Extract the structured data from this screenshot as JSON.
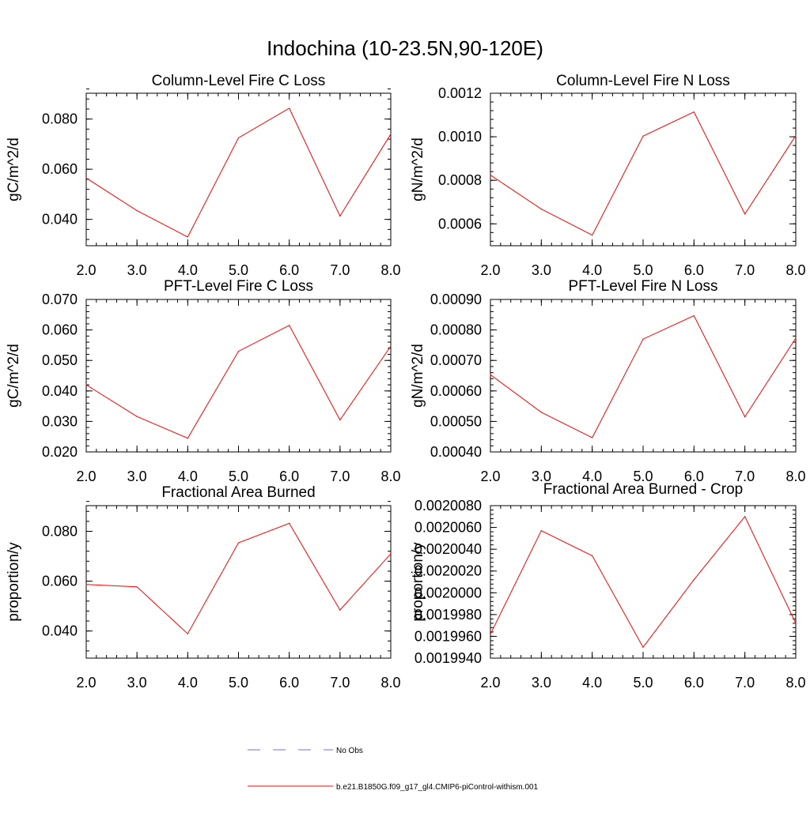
{
  "figure_title": "Indochina (10-23.5N,90-120E)",
  "colors": {
    "model": "#ff0000",
    "obs": "#7070c0",
    "axis": "#000000"
  },
  "legend": [
    {
      "label": "No Obs",
      "style": "dashed",
      "color": "#7070c0"
    },
    {
      "label": "b.e21.B1850G.f09_g17_gl4.CMIP6-piControl-withism.001",
      "style": "solid",
      "color": "#ff0000"
    }
  ],
  "chart_data": [
    {
      "type": "line",
      "title": "Column-Level Fire C Loss",
      "xlabel": "",
      "ylabel": "gC/m^2/d",
      "x": [
        2,
        3,
        4,
        5,
        6,
        7,
        8
      ],
      "xticks": [
        "2.0",
        "3.0",
        "4.0",
        "5.0",
        "6.0",
        "7.0",
        "8.0"
      ],
      "xlim": [
        2,
        8
      ],
      "ylim": [
        0.0295,
        0.0903
      ],
      "yticks": [
        0.04,
        0.06,
        0.08
      ],
      "yticklabels": [
        "0.040",
        "0.060",
        "0.080"
      ],
      "series": [
        {
          "name": "b.e21.B1850G.f09_g17_gl4.CMIP6-piControl-withism.001",
          "values": [
            0.0565,
            0.0435,
            0.033,
            0.0725,
            0.0843,
            0.0413,
            0.074
          ]
        }
      ]
    },
    {
      "type": "line",
      "title": "Column-Level Fire N Loss",
      "xlabel": "",
      "ylabel": "gN/m^2/d",
      "x": [
        2,
        3,
        4,
        5,
        6,
        7,
        8
      ],
      "xticks": [
        "2.0",
        "3.0",
        "4.0",
        "5.0",
        "6.0",
        "7.0",
        "8.0"
      ],
      "xlim": [
        2,
        8
      ],
      "ylim": [
        0.0004995,
        0.0012
      ],
      "yticks": [
        0.0006,
        0.0008,
        0.001,
        0.0012
      ],
      "yticklabels": [
        "0.0006",
        "0.0008",
        "0.0010",
        "0.0012"
      ],
      "series": [
        {
          "name": "b.e21.B1850G.f09_g17_gl4.CMIP6-piControl-withism.001",
          "values": [
            0.000824,
            0.000668,
            0.000548,
            0.001003,
            0.001114,
            0.000645,
            0.001005
          ]
        }
      ]
    },
    {
      "type": "line",
      "title": "PFT-Level Fire C Loss",
      "xlabel": "",
      "ylabel": "gC/m^2/d",
      "x": [
        2,
        3,
        4,
        5,
        6,
        7,
        8
      ],
      "xticks": [
        "2.0",
        "3.0",
        "4.0",
        "5.0",
        "6.0",
        "7.0",
        "8.0"
      ],
      "xlim": [
        2,
        8
      ],
      "ylim": [
        0.02,
        0.07
      ],
      "yticks": [
        0.02,
        0.03,
        0.04,
        0.05,
        0.06,
        0.07
      ],
      "yticklabels": [
        "0.020",
        "0.030",
        "0.040",
        "0.050",
        "0.060",
        "0.070"
      ],
      "series": [
        {
          "name": "b.e21.B1850G.f09_g17_gl4.CMIP6-piControl-withism.001",
          "values": [
            0.042,
            0.0316,
            0.0245,
            0.053,
            0.0615,
            0.0305,
            0.0547
          ]
        }
      ]
    },
    {
      "type": "line",
      "title": "PFT-Level Fire N Loss",
      "xlabel": "",
      "ylabel": "gN/m^2/d",
      "x": [
        2,
        3,
        4,
        5,
        6,
        7,
        8
      ],
      "xticks": [
        "2.0",
        "3.0",
        "4.0",
        "5.0",
        "6.0",
        "7.0",
        "8.0"
      ],
      "xlim": [
        2,
        8
      ],
      "ylim": [
        0.0004,
        0.0009
      ],
      "yticks": [
        0.0004,
        0.0005,
        0.0006,
        0.0007,
        0.0008,
        0.0009
      ],
      "yticklabels": [
        "0.00040",
        "0.00050",
        "0.00060",
        "0.00070",
        "0.00080",
        "0.00090"
      ],
      "series": [
        {
          "name": "b.e21.B1850G.f09_g17_gl4.CMIP6-piControl-withism.001",
          "values": [
            0.000653,
            0.00053,
            0.000447,
            0.00077,
            0.000847,
            0.000515,
            0.000773
          ]
        }
      ]
    },
    {
      "type": "line",
      "title": "Fractional Area Burned",
      "xlabel": "",
      "ylabel": "proportion/y",
      "x": [
        2,
        3,
        4,
        5,
        6,
        7,
        8
      ],
      "xticks": [
        "2.0",
        "3.0",
        "4.0",
        "5.0",
        "6.0",
        "7.0",
        "8.0"
      ],
      "xlim": [
        2,
        8
      ],
      "ylim": [
        0.0291,
        0.0903
      ],
      "yticks": [
        0.04,
        0.06,
        0.08
      ],
      "yticklabels": [
        "0.040",
        "0.060",
        "0.080"
      ],
      "series": [
        {
          "name": "b.e21.B1850G.f09_g17_gl4.CMIP6-piControl-withism.001",
          "values": [
            0.0587,
            0.0577,
            0.0389,
            0.0754,
            0.0832,
            0.0484,
            0.071
          ]
        }
      ]
    },
    {
      "type": "line",
      "title": "Fractional Area Burned - Crop",
      "xlabel": "",
      "ylabel": "proportion/y",
      "x": [
        2,
        3,
        4,
        5,
        6,
        7,
        8
      ],
      "xticks": [
        "2.0",
        "3.0",
        "4.0",
        "5.0",
        "6.0",
        "7.0",
        "8.0"
      ],
      "xlim": [
        2,
        8
      ],
      "ylim": [
        0.001994,
        0.002008
      ],
      "yticks": [
        0.001994,
        0.001996,
        0.001998,
        0.002,
        0.002002,
        0.002004,
        0.002006,
        0.002008
      ],
      "yticklabels": [
        "0.0019940",
        "0.0019960",
        "0.0019980",
        "0.0020000",
        "0.0020020",
        "0.0020040",
        "0.0020060",
        "0.0020080"
      ],
      "series": [
        {
          "name": "b.e21.B1850G.f09_g17_gl4.CMIP6-piControl-withism.001",
          "values": [
            0.0019962,
            0.0020057,
            0.0020034,
            0.001995,
            0.0020012,
            0.002007,
            0.0019972
          ]
        }
      ]
    }
  ]
}
